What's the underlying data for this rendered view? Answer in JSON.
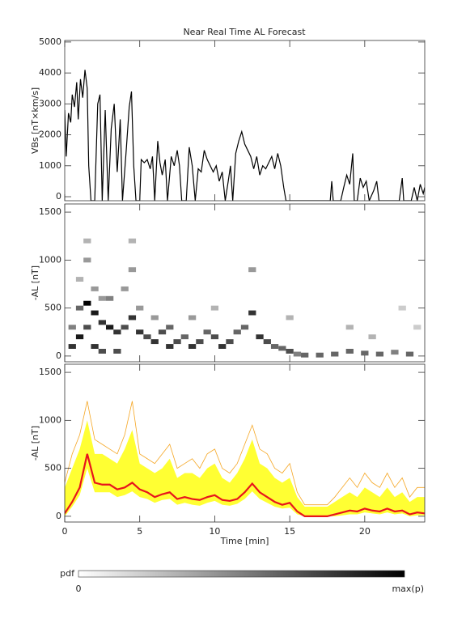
{
  "chart_data": [
    {
      "type": "line",
      "title": "Near Real Time AL Forecast",
      "ylabel": "VBs [nT×km/s]",
      "color": "#000000",
      "xlim": [
        0,
        24
      ],
      "xticks": [
        0,
        5,
        10,
        15,
        20
      ],
      "ylim": [
        -130,
        5050
      ],
      "yticks": [
        0,
        1000,
        2000,
        3000,
        4000,
        5000
      ],
      "x": [
        0,
        0.1,
        0.25,
        0.4,
        0.5,
        0.65,
        0.8,
        0.9,
        1.05,
        1.2,
        1.35,
        1.5,
        1.6,
        1.75,
        2.0,
        2.2,
        2.35,
        2.5,
        2.7,
        2.9,
        3.1,
        3.3,
        3.5,
        3.7,
        3.85,
        4.1,
        4.3,
        4.45,
        4.6,
        4.75,
        5.0,
        5.1,
        5.3,
        5.5,
        5.7,
        5.85,
        6.0,
        6.2,
        6.35,
        6.5,
        6.7,
        6.85,
        7.1,
        7.3,
        7.5,
        7.65,
        7.8,
        8.1,
        8.3,
        8.5,
        8.7,
        8.9,
        9.1,
        9.3,
        9.5,
        9.7,
        9.9,
        10.1,
        10.3,
        10.5,
        10.7,
        10.9,
        11.05,
        11.2,
        11.4,
        11.6,
        11.8,
        12.0,
        12.2,
        12.4,
        12.6,
        12.8,
        13.0,
        13.2,
        13.4,
        13.6,
        13.8,
        14.0,
        14.2,
        14.4,
        14.6,
        14.75,
        16,
        17.7,
        17.8,
        17.9,
        18.4,
        18.6,
        18.8,
        19,
        19.2,
        19.3,
        19.5,
        19.7,
        19.9,
        20.1,
        20.3,
        20.6,
        20.8,
        20.95,
        22.3,
        22.5,
        22.6,
        23.1,
        23.3,
        23.5,
        23.7,
        23.9,
        24
      ],
      "values": [
        2800,
        1300,
        2700,
        2400,
        3300,
        2900,
        3700,
        2500,
        3800,
        3200,
        4100,
        3500,
        1000,
        -130,
        -130,
        3000,
        3300,
        -130,
        2800,
        -130,
        2200,
        3000,
        800,
        2500,
        -130,
        1500,
        2900,
        3400,
        1000,
        -130,
        -130,
        1200,
        1100,
        1200,
        900,
        1300,
        -130,
        1800,
        1100,
        700,
        1200,
        -130,
        1300,
        1000,
        1500,
        1000,
        -130,
        -130,
        1600,
        1000,
        -130,
        900,
        800,
        1500,
        1200,
        1000,
        800,
        1000,
        500,
        800,
        -130,
        500,
        1000,
        -130,
        1400,
        1800,
        2100,
        1700,
        1500,
        1300,
        900,
        1300,
        700,
        1000,
        900,
        1100,
        1300,
        900,
        1400,
        1000,
        300,
        -130,
        -130,
        -130,
        500,
        -130,
        -130,
        300,
        700,
        400,
        1400,
        -130,
        -130,
        600,
        300,
        500,
        -130,
        200,
        500,
        -130,
        -130,
        600,
        -130,
        -130,
        300,
        -130,
        400,
        100,
        300
      ]
    },
    {
      "type": "heatmap",
      "ylabel": "-AL [nT]",
      "xlim": [
        0,
        24
      ],
      "xticks": [
        0,
        5,
        10,
        15,
        20
      ],
      "ylim": [
        -60,
        1585
      ],
      "yticks": [
        0,
        500,
        1000,
        1500
      ],
      "x": [
        0.5,
        0.5,
        1,
        1,
        1,
        1.5,
        1.5,
        1.5,
        1.5,
        2,
        2,
        2,
        2.5,
        2.5,
        2.5,
        3,
        3,
        3.5,
        3.5,
        4,
        4,
        4.5,
        4.5,
        4.5,
        5,
        5,
        5.5,
        6,
        6,
        6.5,
        7,
        7,
        7.5,
        8,
        8.5,
        8.5,
        9,
        9.5,
        10,
        10,
        10.5,
        11,
        11.5,
        12,
        12.5,
        12.5,
        13,
        13.5,
        14,
        14.5,
        15,
        15,
        15.5,
        16,
        17,
        18,
        19,
        19,
        20,
        20.5,
        21,
        22,
        22.5,
        23,
        23.5
      ],
      "y": [
        100,
        300,
        200,
        500,
        800,
        550,
        300,
        1000,
        1200,
        450,
        100,
        700,
        350,
        50,
        600,
        300,
        600,
        250,
        50,
        300,
        700,
        400,
        1200,
        900,
        250,
        500,
        200,
        150,
        400,
        250,
        300,
        100,
        150,
        200,
        100,
        400,
        150,
        250,
        200,
        500,
        100,
        150,
        250,
        300,
        450,
        900,
        200,
        150,
        100,
        80,
        50,
        400,
        20,
        10,
        10,
        20,
        50,
        300,
        30,
        200,
        20,
        40,
        500,
        20,
        300
      ],
      "values": [
        0.8,
        0.5,
        0.9,
        0.6,
        0.3,
        1,
        0.7,
        0.4,
        0.3,
        0.9,
        0.8,
        0.4,
        0.8,
        0.7,
        0.4,
        0.9,
        0.5,
        0.8,
        0.7,
        0.7,
        0.4,
        0.8,
        0.3,
        0.4,
        0.8,
        0.4,
        0.7,
        0.8,
        0.4,
        0.7,
        0.6,
        0.8,
        0.7,
        0.6,
        0.8,
        0.4,
        0.7,
        0.6,
        0.7,
        0.3,
        0.8,
        0.7,
        0.6,
        0.6,
        0.8,
        0.4,
        0.8,
        0.7,
        0.6,
        0.6,
        0.7,
        0.3,
        0.5,
        0.6,
        0.6,
        0.6,
        0.6,
        0.3,
        0.6,
        0.3,
        0.6,
        0.5,
        0.2,
        0.6,
        0.2
      ]
    },
    {
      "type": "area",
      "ylabel": "-AL [nT]",
      "xlabel": "Time [min]",
      "xlim": [
        0,
        24
      ],
      "xticks": [
        0,
        5,
        10,
        15,
        20
      ],
      "ylim": [
        -60,
        1585
      ],
      "yticks": [
        0,
        500,
        1000,
        1500
      ],
      "x": [
        0,
        0.5,
        1,
        1.5,
        2,
        2.5,
        3,
        3.5,
        4,
        4.5,
        5,
        5.5,
        6,
        6.5,
        7,
        7.5,
        8,
        8.5,
        9,
        9.5,
        10,
        10.5,
        11,
        11.5,
        12,
        12.5,
        13,
        13.5,
        14,
        14.5,
        15,
        15.5,
        16,
        16.5,
        17,
        17.5,
        18,
        18.5,
        19,
        19.5,
        20,
        20.5,
        21,
        21.5,
        22,
        22.5,
        23,
        23.5,
        24
      ],
      "series": [
        {
          "color": "#f5a623",
          "values": [
            350,
            650,
            850,
            1200,
            800,
            750,
            700,
            650,
            850,
            1200,
            650,
            600,
            550,
            650,
            750,
            500,
            550,
            600,
            500,
            650,
            700,
            500,
            450,
            550,
            750,
            950,
            700,
            650,
            500,
            450,
            550,
            250,
            120,
            120,
            120,
            120,
            200,
            300,
            400,
            300,
            450,
            350,
            300,
            450,
            300,
            400,
            200,
            300,
            300
          ]
        },
        {
          "color": "#ffff33",
          "values": [
            300,
            500,
            700,
            1000,
            650,
            650,
            600,
            550,
            700,
            900,
            550,
            500,
            450,
            500,
            600,
            400,
            450,
            450,
            400,
            500,
            550,
            400,
            350,
            450,
            600,
            800,
            550,
            500,
            400,
            350,
            400,
            200,
            100,
            100,
            100,
            100,
            150,
            200,
            250,
            200,
            300,
            250,
            200,
            300,
            200,
            250,
            150,
            200,
            200
          ]
        },
        {
          "color": "#ffff33",
          "values": [
            0,
            100,
            220,
            500,
            250,
            250,
            250,
            200,
            220,
            260,
            200,
            180,
            140,
            170,
            180,
            120,
            140,
            120,
            110,
            140,
            160,
            120,
            110,
            130,
            180,
            260,
            180,
            140,
            100,
            80,
            90,
            20,
            0,
            0,
            0,
            0,
            0,
            10,
            20,
            20,
            40,
            30,
            20,
            40,
            20,
            30,
            0,
            10,
            10
          ]
        },
        {
          "color": "#e8141c",
          "values": [
            30,
            150,
            300,
            650,
            350,
            330,
            330,
            280,
            300,
            350,
            280,
            250,
            200,
            230,
            250,
            180,
            200,
            180,
            170,
            200,
            220,
            170,
            160,
            180,
            250,
            340,
            250,
            200,
            150,
            120,
            140,
            50,
            0,
            0,
            0,
            0,
            20,
            40,
            60,
            50,
            80,
            60,
            50,
            80,
            50,
            60,
            20,
            40,
            30
          ]
        }
      ]
    }
  ],
  "colorbar": {
    "label": "pdf",
    "min_label": "0",
    "max_label": "max(p)"
  }
}
